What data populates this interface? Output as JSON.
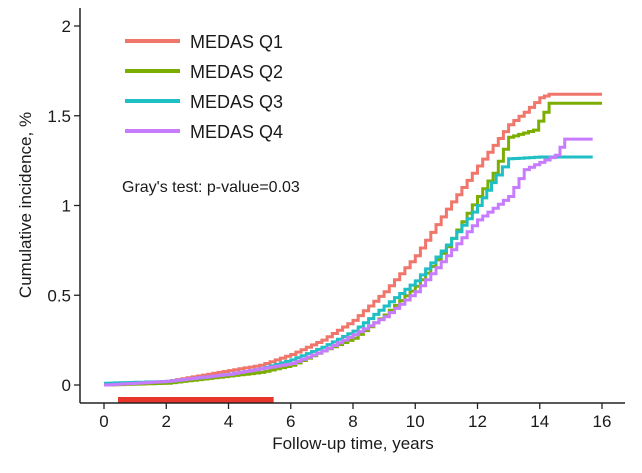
{
  "chart_data": {
    "type": "line",
    "step": true,
    "title": "",
    "xlabel": "Follow-up time, years",
    "ylabel": "Cumulative incidence, %",
    "xlim": [
      -0.7,
      16.7
    ],
    "ylim": [
      -0.1,
      2
    ],
    "xticks": [
      0,
      2,
      4,
      6,
      8,
      10,
      12,
      14,
      16
    ],
    "yticks": [
      0,
      0.5,
      1,
      1.5,
      2
    ],
    "ytick_labels": [
      "0",
      "0.5",
      "1",
      "1.5",
      "2"
    ],
    "grid": false,
    "legend_position": "top-left",
    "annotation": "Gray's test: p-value=0.03",
    "highlight_interval": {
      "x": [
        0.45,
        5.45
      ],
      "color": "#E8352B"
    },
    "series": [
      {
        "name": "MEDAS Q1",
        "color": "#F0756B",
        "x": [
          0,
          1,
          2,
          3,
          4,
          5,
          6,
          7,
          8,
          9,
          10,
          11,
          12,
          13,
          13.5,
          14,
          14.3,
          16
        ],
        "y": [
          0,
          0.01,
          0.02,
          0.05,
          0.08,
          0.11,
          0.17,
          0.25,
          0.36,
          0.52,
          0.72,
          0.98,
          1.22,
          1.45,
          1.52,
          1.6,
          1.62,
          1.62
        ]
      },
      {
        "name": "MEDAS Q2",
        "color": "#7CAE00",
        "x": [
          0,
          1,
          2,
          3,
          4,
          5,
          6,
          7,
          8,
          9,
          10,
          11,
          12,
          12.5,
          13,
          13.8,
          14.3,
          16
        ],
        "y": [
          0,
          0.005,
          0.01,
          0.03,
          0.05,
          0.07,
          0.11,
          0.19,
          0.26,
          0.39,
          0.55,
          0.77,
          1.05,
          1.18,
          1.38,
          1.42,
          1.57,
          1.57
        ]
      },
      {
        "name": "MEDAS Q3",
        "color": "#1FBFC4",
        "x": [
          0,
          1,
          2,
          3,
          4,
          5,
          6,
          7,
          8,
          9,
          10,
          11,
          12,
          12.6,
          13,
          14,
          15.7
        ],
        "y": [
          0.01,
          0.015,
          0.02,
          0.04,
          0.06,
          0.09,
          0.14,
          0.21,
          0.3,
          0.44,
          0.58,
          0.78,
          1.0,
          1.17,
          1.26,
          1.27,
          1.27
        ]
      },
      {
        "name": "MEDAS Q4",
        "color": "#C77CFF",
        "x": [
          0,
          1,
          2,
          3,
          4,
          5,
          6,
          7,
          8,
          9,
          10,
          11,
          12,
          13,
          13.5,
          14,
          14.5,
          14.8,
          15.7
        ],
        "y": [
          0,
          0.01,
          0.02,
          0.04,
          0.06,
          0.09,
          0.12,
          0.19,
          0.28,
          0.38,
          0.52,
          0.72,
          0.92,
          1.05,
          1.2,
          1.24,
          1.28,
          1.37,
          1.37
        ]
      }
    ]
  }
}
